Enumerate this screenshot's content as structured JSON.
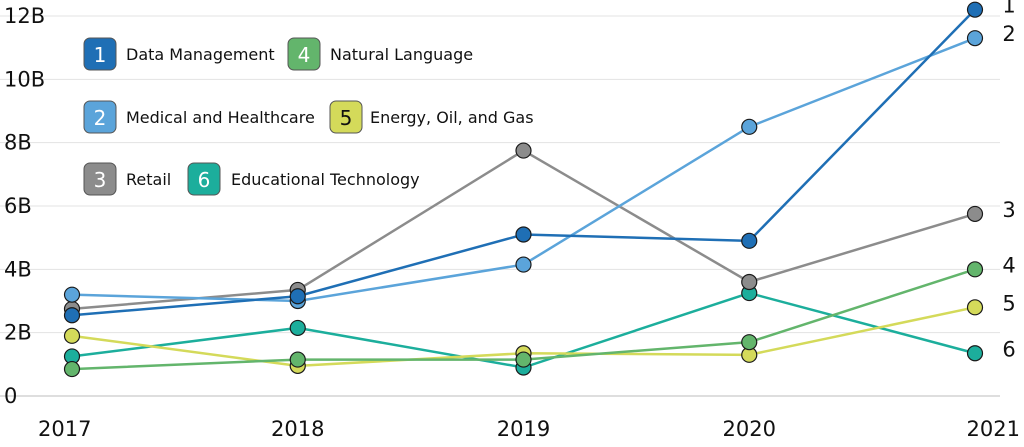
{
  "chart_data": {
    "type": "line",
    "title": "",
    "xlabel": "",
    "ylabel": "",
    "x": [
      "2017",
      "2018",
      "2019",
      "2020",
      "2021"
    ],
    "ylim": [
      0,
      12
    ],
    "y_ticks": [
      0,
      2,
      4,
      6,
      8,
      10,
      12
    ],
    "y_tick_labels": [
      "0",
      "2B",
      "4B",
      "6B",
      "8B",
      "10B",
      "12B"
    ],
    "grid": true,
    "legend_position": "top-left",
    "series": [
      {
        "id": "1",
        "name": "Data Management",
        "color": "#1f6fb5",
        "values": [
          2.55,
          3.15,
          5.1,
          4.9,
          12.2
        ]
      },
      {
        "id": "2",
        "name": "Medical and Healthcare",
        "color": "#5ba4da",
        "values": [
          3.2,
          3.0,
          4.15,
          8.5,
          11.3
        ]
      },
      {
        "id": "3",
        "name": "Retail",
        "color": "#8c8c8c",
        "values": [
          2.75,
          3.35,
          7.75,
          3.6,
          5.75
        ]
      },
      {
        "id": "4",
        "name": "Natural Language",
        "color": "#63b56c",
        "values": [
          0.85,
          1.15,
          1.15,
          1.7,
          4.0
        ]
      },
      {
        "id": "5",
        "name": "Energy, Oil, and Gas",
        "color": "#d4da5a",
        "values": [
          1.9,
          0.95,
          1.35,
          1.3,
          2.8
        ]
      },
      {
        "id": "6",
        "name": "Educational Technology",
        "color": "#1cae9c",
        "values": [
          1.25,
          2.15,
          0.9,
          3.25,
          1.35
        ]
      }
    ],
    "end_labels": [
      "1",
      "2",
      "3",
      "4",
      "5",
      "6"
    ]
  }
}
